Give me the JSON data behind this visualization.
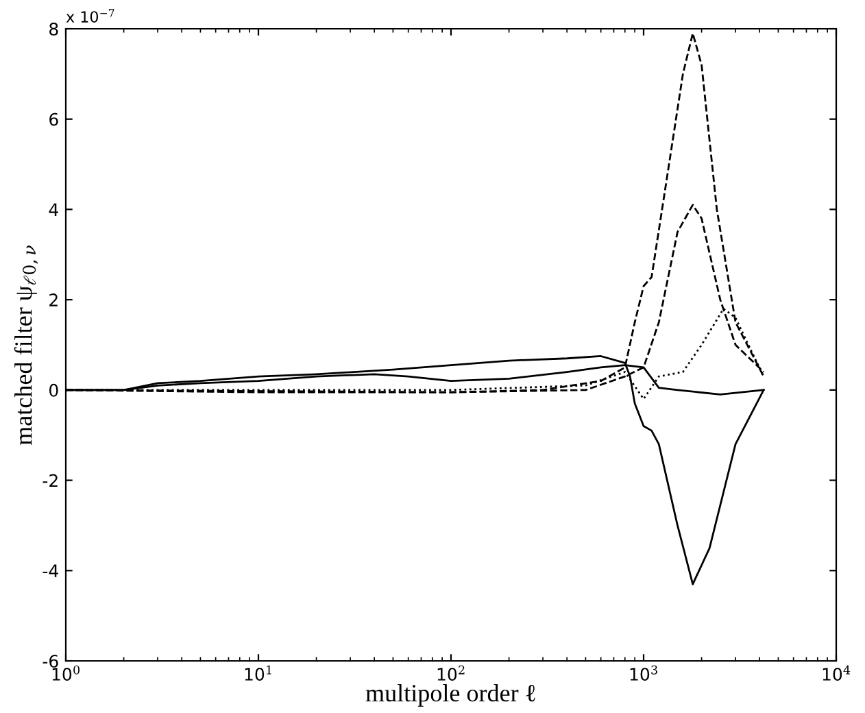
{
  "chart_data": {
    "type": "line",
    "xlabel": "multipole order ℓ",
    "ylabel": "matched filter ψ$_{ℓ0,ν}$",
    "annotations": [
      "x 10$^{−7}$"
    ],
    "log": "x",
    "xlim": [
      1,
      10000
    ],
    "ylim": [
      -6,
      8
    ],
    "xticks": [
      {
        "value": 1,
        "label": "10$^{0}$"
      },
      {
        "value": 10,
        "label": "10$^{1}$"
      },
      {
        "value": 100,
        "label": "10$^{2}$"
      },
      {
        "value": 1000,
        "label": "10$^{3}$"
      },
      {
        "value": 10000,
        "label": "10$^{4}$"
      }
    ],
    "yticks": [
      -6,
      -4,
      -2,
      0,
      2,
      4,
      6,
      8
    ],
    "grid": false,
    "legend": false,
    "marker": "none",
    "series": [
      {
        "color": "#000000",
        "line_style": "solid",
        "x": [
          1,
          2,
          3,
          5,
          10,
          20,
          50,
          100,
          200,
          400,
          600,
          800,
          850,
          900,
          1000,
          1100,
          1200,
          1500,
          1800,
          2200,
          3000,
          4200
        ],
        "values": [
          0,
          0,
          0.15,
          0.2,
          0.3,
          0.35,
          0.45,
          0.55,
          0.65,
          0.7,
          0.75,
          0.6,
          0.3,
          -0.3,
          -0.8,
          -0.9,
          -1.2,
          -3,
          -4.3,
          -3.5,
          -1.2,
          0
        ]
      },
      {
        "color": "#000000",
        "line_style": "solid",
        "x": [
          1,
          2,
          3,
          5,
          10,
          20,
          40,
          60,
          100,
          200,
          400,
          600,
          800,
          1000,
          1200,
          1500,
          2500,
          4200
        ],
        "values": [
          0,
          0,
          0.1,
          0.15,
          0.2,
          0.3,
          0.35,
          0.3,
          0.2,
          0.25,
          0.4,
          0.5,
          0.55,
          0.5,
          0.05,
          0,
          -0.1,
          0
        ]
      },
      {
        "color": "#000000",
        "line_style": "dashed",
        "x": [
          1,
          10,
          100,
          300,
          600,
          800,
          900,
          1000,
          1100,
          1300,
          1600,
          1800,
          2000,
          2400,
          3000,
          4200
        ],
        "values": [
          0,
          -0.05,
          -0.05,
          0,
          0.2,
          0.5,
          1.5,
          2.3,
          2.5,
          4.5,
          7,
          7.9,
          7.2,
          4,
          1.5,
          0.3
        ]
      },
      {
        "color": "#000000",
        "line_style": "dashed",
        "x": [
          1,
          100,
          500,
          800,
          1000,
          1200,
          1500,
          1800,
          2000,
          2500,
          3000,
          4200
        ],
        "values": [
          0,
          -0.05,
          0,
          0.3,
          0.5,
          1.5,
          3.5,
          4.1,
          3.8,
          2,
          1,
          0.4
        ]
      },
      {
        "color": "#000000",
        "line_style": "dotted",
        "x": [
          1,
          100,
          500,
          800,
          1000,
          1200,
          1600,
          2000,
          2600,
          3000,
          3500,
          4200
        ],
        "values": [
          0,
          0,
          0.1,
          0.4,
          -0.2,
          0.3,
          0.4,
          1.0,
          1.8,
          1.6,
          1,
          0.3
        ]
      }
    ]
  }
}
